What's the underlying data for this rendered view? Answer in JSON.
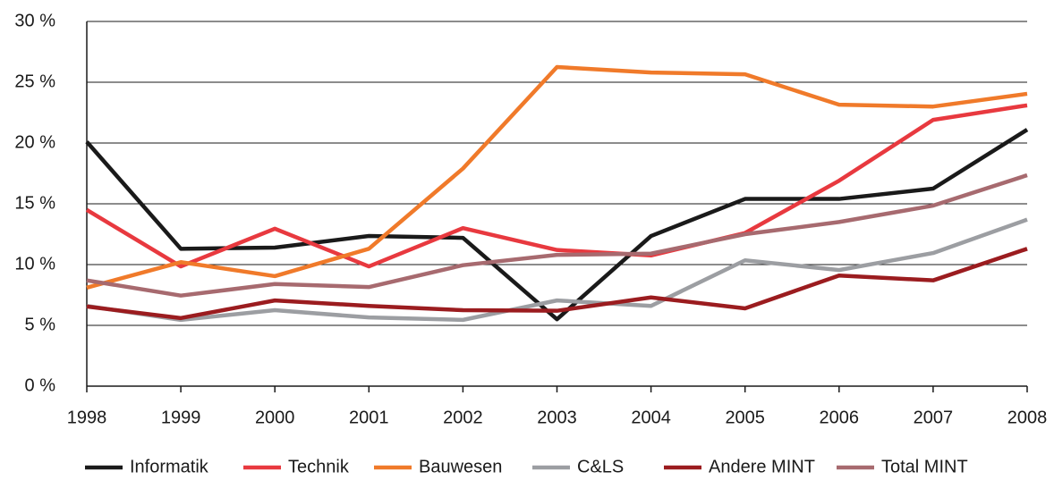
{
  "chart_data": {
    "type": "line",
    "categories": [
      "1998",
      "1999",
      "2000",
      "2001",
      "2002",
      "2003",
      "2004",
      "2005",
      "2006",
      "2007",
      "2008"
    ],
    "series": [
      {
        "name": "Informatik",
        "color": "#1a1a1a",
        "values": [
          20.1,
          11.3,
          11.4,
          12.35,
          12.2,
          5.5,
          12.35,
          15.4,
          15.4,
          16.25,
          21.1
        ]
      },
      {
        "name": "Technik",
        "color": "#e8393f",
        "values": [
          14.5,
          9.85,
          12.95,
          9.85,
          13.0,
          11.2,
          10.75,
          12.6,
          16.9,
          21.9,
          23.1
        ]
      },
      {
        "name": "Bauwesen",
        "color": "#f07a2a",
        "values": [
          8.1,
          10.2,
          9.05,
          11.3,
          17.9,
          26.25,
          25.8,
          25.65,
          23.15,
          23.0,
          24.05
        ]
      },
      {
        "name": "C&LS",
        "color": "#9c9ea2",
        "values": [
          6.6,
          5.45,
          6.25,
          5.65,
          5.45,
          7.05,
          6.6,
          10.35,
          9.55,
          10.95,
          13.7
        ]
      },
      {
        "name": "Andere MINT",
        "color": "#9b1c1f",
        "values": [
          6.55,
          5.6,
          7.05,
          6.6,
          6.25,
          6.2,
          7.3,
          6.4,
          9.1,
          8.7,
          11.3
        ]
      },
      {
        "name": "Total MINT",
        "color": "#a76a6f",
        "values": [
          8.7,
          7.45,
          8.4,
          8.15,
          9.95,
          10.8,
          10.9,
          12.5,
          13.5,
          14.85,
          17.35
        ]
      }
    ],
    "ylim": [
      0,
      30
    ],
    "yticks": [
      {
        "value": 0,
        "label": "0 %"
      },
      {
        "value": 5,
        "label": "5 %"
      },
      {
        "value": 10,
        "label": "10 %"
      },
      {
        "value": 15,
        "label": "15 %"
      },
      {
        "value": 20,
        "label": "20 %"
      },
      {
        "value": 25,
        "label": "25 %"
      },
      {
        "value": 30,
        "label": "30 %"
      }
    ],
    "grid": true,
    "legend": "bottom"
  }
}
